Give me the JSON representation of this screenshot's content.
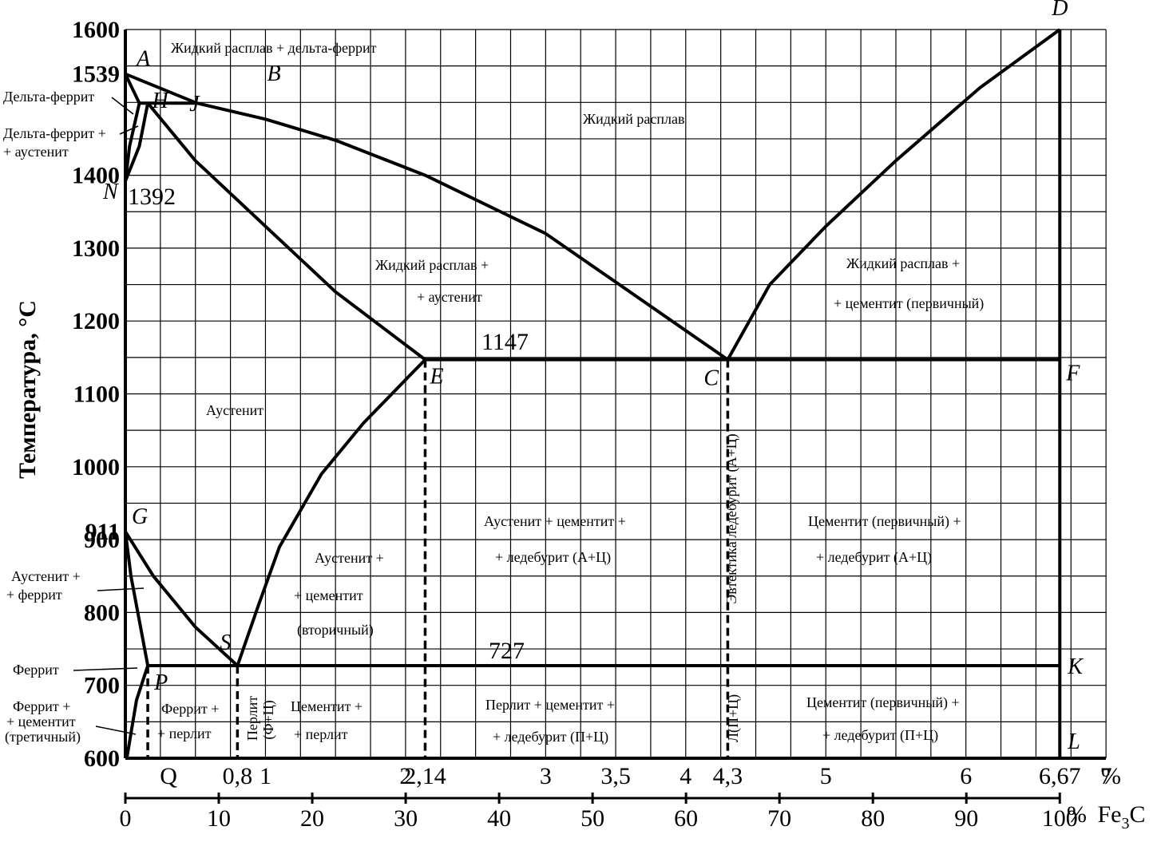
{
  "chart_data": {
    "type": "line",
    "title": "",
    "ylabel": "Температура, °C",
    "xlabel_carbon": "%",
    "xlabel_fe3c": "% Fe3C",
    "ylim": [
      600,
      1600
    ],
    "xlim": [
      0,
      7
    ],
    "grid": true,
    "y_ticks": [
      {
        "v": 1600,
        "t": "1600"
      },
      {
        "v": 1539,
        "t": "1539"
      },
      {
        "v": 1400,
        "t": "1400"
      },
      {
        "v": 1300,
        "t": "1300"
      },
      {
        "v": 1200,
        "t": "1200"
      },
      {
        "v": 1100,
        "t": "1100"
      },
      {
        "v": 1000,
        "t": "1000"
      },
      {
        "v": 911,
        "t": "911"
      },
      {
        "v": 900,
        "t": "900"
      },
      {
        "v": 800,
        "t": "800"
      },
      {
        "v": 700,
        "t": "700"
      },
      {
        "v": 600,
        "t": "600"
      }
    ],
    "x_ticks_carbon": [
      {
        "v": 0.16,
        "t": "Q"
      },
      {
        "v": 0.8,
        "t": "0,8"
      },
      {
        "v": 1,
        "t": "1"
      },
      {
        "v": 2,
        "t": "2"
      },
      {
        "v": 2.14,
        "t": "2,14"
      },
      {
        "v": 3,
        "t": "3"
      },
      {
        "v": 3.5,
        "t": "3,5"
      },
      {
        "v": 4,
        "t": "4"
      },
      {
        "v": 4.3,
        "t": "4,3"
      },
      {
        "v": 5,
        "t": "5"
      },
      {
        "v": 6,
        "t": "6"
      },
      {
        "v": 6.67,
        "t": "6,67"
      },
      {
        "v": 7,
        "t": "7"
      }
    ],
    "x_ticks_fe3c": [
      "0",
      "10",
      "20",
      "30",
      "40",
      "50",
      "60",
      "70",
      "80",
      "90",
      "100"
    ],
    "special_labels": {
      "n1392": "1392",
      "t1147": "1147",
      "t727": "727"
    },
    "points": [
      {
        "name": "A",
        "x": 0,
        "y": 1539
      },
      {
        "name": "B",
        "x": 0.51,
        "y": 1499
      },
      {
        "name": "H",
        "x": 0.1,
        "y": 1499
      },
      {
        "name": "J",
        "x": 0.16,
        "y": 1499
      },
      {
        "name": "N",
        "x": 0,
        "y": 1392
      },
      {
        "name": "D",
        "x": 6.67,
        "y": 1600
      },
      {
        "name": "E",
        "x": 2.14,
        "y": 1147
      },
      {
        "name": "C",
        "x": 4.3,
        "y": 1147
      },
      {
        "name": "F",
        "x": 6.67,
        "y": 1147
      },
      {
        "name": "G",
        "x": 0,
        "y": 911
      },
      {
        "name": "S",
        "x": 0.8,
        "y": 727
      },
      {
        "name": "P",
        "x": 0.16,
        "y": 727
      },
      {
        "name": "K",
        "x": 6.67,
        "y": 727
      },
      {
        "name": "Q",
        "x": 0.01,
        "y": 600
      },
      {
        "name": "L",
        "x": 6.67,
        "y": 600
      }
    ],
    "series": [
      {
        "name": "AB",
        "points": [
          [
            0,
            1539
          ],
          [
            0.51,
            1499
          ]
        ]
      },
      {
        "name": "BC",
        "points": [
          [
            0.51,
            1499
          ],
          [
            1.0,
            1477
          ],
          [
            1.5,
            1448
          ],
          [
            2.14,
            1400
          ],
          [
            3.0,
            1320
          ],
          [
            4.3,
            1147
          ]
        ]
      },
      {
        "name": "CD",
        "points": [
          [
            4.3,
            1147
          ],
          [
            4.6,
            1250
          ],
          [
            5.0,
            1330
          ],
          [
            5.5,
            1420
          ],
          [
            6.1,
            1520
          ],
          [
            6.67,
            1600
          ]
        ]
      },
      {
        "name": "HJB",
        "points": [
          [
            0.1,
            1499
          ],
          [
            0.51,
            1499
          ]
        ]
      },
      {
        "name": "AH",
        "points": [
          [
            0,
            1539
          ],
          [
            0.1,
            1499
          ]
        ]
      },
      {
        "name": "JE",
        "points": [
          [
            0.16,
            1499
          ],
          [
            0.5,
            1420
          ],
          [
            1.0,
            1330
          ],
          [
            1.5,
            1240
          ],
          [
            2.14,
            1147
          ]
        ]
      },
      {
        "name": "HN",
        "points": [
          [
            0.1,
            1499
          ],
          [
            0.03,
            1440
          ],
          [
            0,
            1392
          ]
        ]
      },
      {
        "name": "JN",
        "points": [
          [
            0.16,
            1499
          ],
          [
            0.1,
            1440
          ],
          [
            0,
            1392
          ]
        ]
      },
      {
        "name": "ECF",
        "points": [
          [
            2.14,
            1147
          ],
          [
            6.67,
            1147
          ]
        ]
      },
      {
        "name": "ES",
        "points": [
          [
            2.14,
            1147
          ],
          [
            1.7,
            1060
          ],
          [
            1.4,
            990
          ],
          [
            1.1,
            890
          ],
          [
            0.95,
            810
          ],
          [
            0.8,
            727
          ]
        ]
      },
      {
        "name": "GS",
        "points": [
          [
            0,
            911
          ],
          [
            0.2,
            850
          ],
          [
            0.5,
            780
          ],
          [
            0.8,
            727
          ]
        ]
      },
      {
        "name": "GP",
        "points": [
          [
            0,
            911
          ],
          [
            0.04,
            850
          ],
          [
            0.16,
            727
          ]
        ]
      },
      {
        "name": "PSK",
        "points": [
          [
            0.16,
            727
          ],
          [
            6.67,
            727
          ]
        ]
      },
      {
        "name": "PQ",
        "points": [
          [
            0.16,
            727
          ],
          [
            0.08,
            680
          ],
          [
            0.01,
            600
          ]
        ]
      },
      {
        "name": "DL",
        "points": [
          [
            6.67,
            1600
          ],
          [
            6.67,
            600
          ]
        ]
      },
      {
        "name": "AN",
        "points": [
          [
            0,
            1539
          ],
          [
            0,
            1392
          ]
        ]
      }
    ],
    "dashed": [
      {
        "name": "E-down",
        "x": 2.14,
        "from": 1147,
        "to": 600
      },
      {
        "name": "C-down",
        "x": 4.3,
        "from": 1147,
        "to": 600
      },
      {
        "name": "S-down",
        "x": 0.8,
        "from": 727,
        "to": 600
      },
      {
        "name": "P-down",
        "x": 0.16,
        "from": 727,
        "to": 600
      }
    ],
    "annotations": {
      "liq_delta": "Жидкий   расплав + дельта-феррит",
      "liquid": "Жидкий   расплав",
      "delta": "Дельта-феррит",
      "delta_aus_1": "Дельта-феррит +",
      "delta_aus_2": "+ аустенит",
      "liq_aus_1": "Жидкий   расплав +",
      "liq_aus_2": "+ аустенит",
      "liq_cem_1": "Жидкий   расплав +",
      "liq_cem_2": "+ цементит (первичный)",
      "austenite": "Аустенит",
      "aus_cem_led_1": "Аустенит + цементит +",
      "aus_cem_led_2": "+ ледебурит (А+Ц)",
      "cem_led_1": "Цементит  (первичный) +",
      "cem_led_2": "+ ледебурит (А+Ц)",
      "aus_cem2_1": "Аустенит +",
      "aus_cem2_2": "+ цементит",
      "aus_cem2_3": "(вторичный)",
      "aus_fer_1": "Аустенит +",
      "aus_fer_2": "+ феррит",
      "ferrite": "Феррит",
      "fer_cem3_1": "Феррит +",
      "fer_cem3_2": "+ цементит",
      "fer_cem3_3": "(третичный)",
      "fer_perl_1": "Феррит +",
      "fer_perl_2": "+ перлит",
      "perlite_1": "Перлит",
      "perlite_2": "(Ф+Ц)",
      "cem_perl_1": "Цементит +",
      "cem_perl_2": "+ перлит",
      "perl_cem_led_1": "Перлит + цементит +",
      "perl_cem_led_2": "+ ледебурит (П+Ц)",
      "cem_led_pc_1": "Цементит  (первичный) +",
      "cem_led_pc_2": "+ ледебурит (П+Ц)",
      "eutectic": "Эвтектика   ледебурит (А+Ц)",
      "l_pc": "Л(П+Ц)"
    }
  }
}
